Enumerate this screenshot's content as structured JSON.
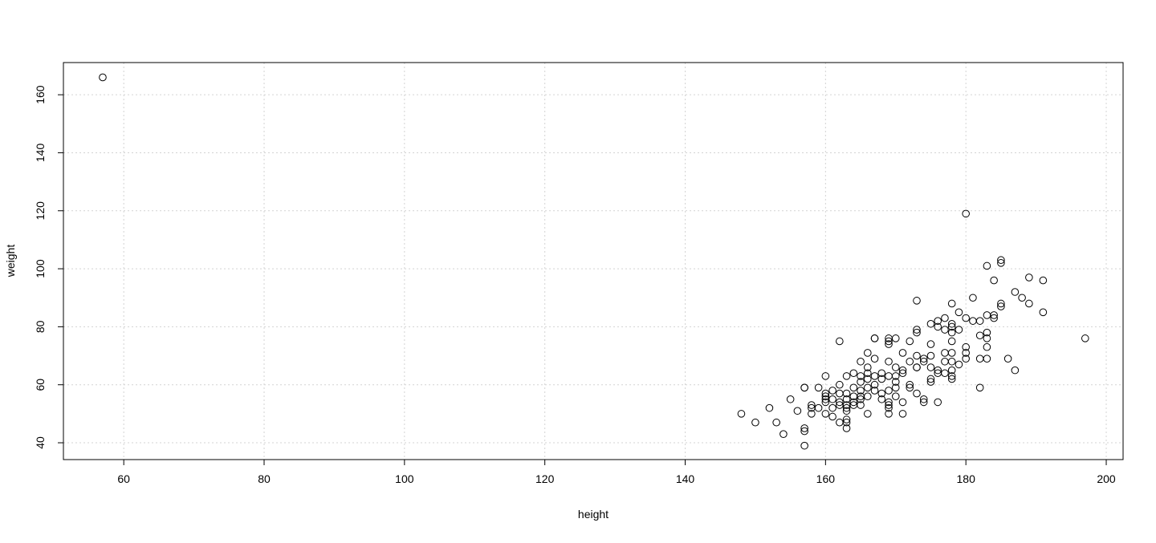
{
  "chart_data": {
    "type": "scatter",
    "title": "",
    "xlabel": "height",
    "ylabel": "weight",
    "xlim": [
      51.4,
      202.4
    ],
    "ylim": [
      34.2,
      171.1
    ],
    "xticks": [
      60,
      80,
      100,
      120,
      140,
      160,
      180,
      200
    ],
    "yticks": [
      40,
      60,
      80,
      100,
      120,
      140,
      160
    ],
    "grid": true,
    "marker": "open-circle",
    "colors": {
      "points": "#000000",
      "grid": "#d3d3d3",
      "axis": "#000000"
    },
    "points": [
      [
        57,
        166
      ],
      [
        180,
        119
      ],
      [
        185,
        103
      ],
      [
        185,
        102
      ],
      [
        183,
        101
      ],
      [
        189,
        97
      ],
      [
        184,
        96
      ],
      [
        191,
        96
      ],
      [
        187,
        92
      ],
      [
        188,
        90
      ],
      [
        181,
        90
      ],
      [
        173,
        89
      ],
      [
        178,
        88
      ],
      [
        185,
        88
      ],
      [
        185,
        87
      ],
      [
        189,
        88
      ],
      [
        179,
        85
      ],
      [
        191,
        85
      ],
      [
        184,
        84
      ],
      [
        183,
        84
      ],
      [
        184,
        83
      ],
      [
        180,
        83
      ],
      [
        177,
        83
      ],
      [
        181,
        82
      ],
      [
        182,
        82
      ],
      [
        176,
        82
      ],
      [
        175,
        81
      ],
      [
        178,
        81
      ],
      [
        178,
        80
      ],
      [
        176,
        80
      ],
      [
        179,
        79
      ],
      [
        173,
        79
      ],
      [
        173,
        78
      ],
      [
        177,
        79
      ],
      [
        183,
        78
      ],
      [
        182,
        77
      ],
      [
        178,
        78
      ],
      [
        183,
        76
      ],
      [
        197,
        76
      ],
      [
        167,
        76
      ],
      [
        167,
        76
      ],
      [
        169,
        76
      ],
      [
        170,
        76
      ],
      [
        169,
        75
      ],
      [
        172,
        75
      ],
      [
        178,
        75
      ],
      [
        162,
        75
      ],
      [
        175,
        74
      ],
      [
        169,
        74
      ],
      [
        180,
        73
      ],
      [
        183,
        73
      ],
      [
        171,
        71
      ],
      [
        166,
        71
      ],
      [
        173,
        70
      ],
      [
        175,
        70
      ],
      [
        177,
        71
      ],
      [
        178,
        71
      ],
      [
        180,
        71
      ],
      [
        180,
        69
      ],
      [
        182,
        69
      ],
      [
        183,
        69
      ],
      [
        186,
        69
      ],
      [
        174,
        69
      ],
      [
        167,
        69
      ],
      [
        172,
        68
      ],
      [
        165,
        68
      ],
      [
        169,
        68
      ],
      [
        174,
        68
      ],
      [
        177,
        68
      ],
      [
        178,
        68
      ],
      [
        179,
        67
      ],
      [
        173,
        66
      ],
      [
        170,
        66
      ],
      [
        166,
        66
      ],
      [
        171,
        65
      ],
      [
        175,
        66
      ],
      [
        176,
        65
      ],
      [
        178,
        65
      ],
      [
        187,
        65
      ],
      [
        164,
        64
      ],
      [
        166,
        64
      ],
      [
        168,
        64
      ],
      [
        171,
        64
      ],
      [
        173,
        66
      ],
      [
        176,
        64
      ],
      [
        177,
        64
      ],
      [
        165,
        63
      ],
      [
        160,
        63
      ],
      [
        163,
        63
      ],
      [
        167,
        63
      ],
      [
        169,
        63
      ],
      [
        170,
        63
      ],
      [
        178,
        63
      ],
      [
        175,
        62
      ],
      [
        166,
        62
      ],
      [
        168,
        62
      ],
      [
        178,
        62
      ],
      [
        165,
        61
      ],
      [
        170,
        61
      ],
      [
        175,
        61
      ],
      [
        162,
        60
      ],
      [
        167,
        60
      ],
      [
        172,
        60
      ],
      [
        164,
        59
      ],
      [
        157,
        59
      ],
      [
        157,
        59
      ],
      [
        159,
        59
      ],
      [
        166,
        59
      ],
      [
        170,
        59
      ],
      [
        172,
        59
      ],
      [
        182,
        59
      ],
      [
        161,
        58
      ],
      [
        165,
        58
      ],
      [
        167,
        58
      ],
      [
        169,
        58
      ],
      [
        160,
        57
      ],
      [
        163,
        57
      ],
      [
        168,
        57
      ],
      [
        173,
        57
      ],
      [
        162,
        57
      ],
      [
        166,
        56
      ],
      [
        170,
        56
      ],
      [
        164,
        56
      ],
      [
        160,
        56
      ],
      [
        165,
        56
      ],
      [
        155,
        55
      ],
      [
        160,
        55
      ],
      [
        163,
        55
      ],
      [
        165,
        55
      ],
      [
        168,
        55
      ],
      [
        174,
        55
      ],
      [
        161,
        55
      ],
      [
        174,
        54
      ],
      [
        176,
        54
      ],
      [
        171,
        54
      ],
      [
        164,
        54
      ],
      [
        162,
        54
      ],
      [
        160,
        54
      ],
      [
        169,
        54
      ],
      [
        158,
        53
      ],
      [
        162,
        53
      ],
      [
        163,
        53
      ],
      [
        164,
        53
      ],
      [
        165,
        53
      ],
      [
        169,
        53
      ],
      [
        152,
        52
      ],
      [
        158,
        52
      ],
      [
        159,
        52
      ],
      [
        163,
        52
      ],
      [
        161,
        52
      ],
      [
        169,
        52
      ],
      [
        156,
        51
      ],
      [
        163,
        51
      ],
      [
        148,
        50
      ],
      [
        158,
        50
      ],
      [
        160,
        50
      ],
      [
        166,
        50
      ],
      [
        169,
        50
      ],
      [
        171,
        50
      ],
      [
        161,
        49
      ],
      [
        163,
        48
      ],
      [
        150,
        47
      ],
      [
        153,
        47
      ],
      [
        162,
        47
      ],
      [
        163,
        47
      ],
      [
        157,
        45
      ],
      [
        163,
        45
      ],
      [
        157,
        44
      ],
      [
        154,
        43
      ],
      [
        157,
        39
      ]
    ]
  }
}
